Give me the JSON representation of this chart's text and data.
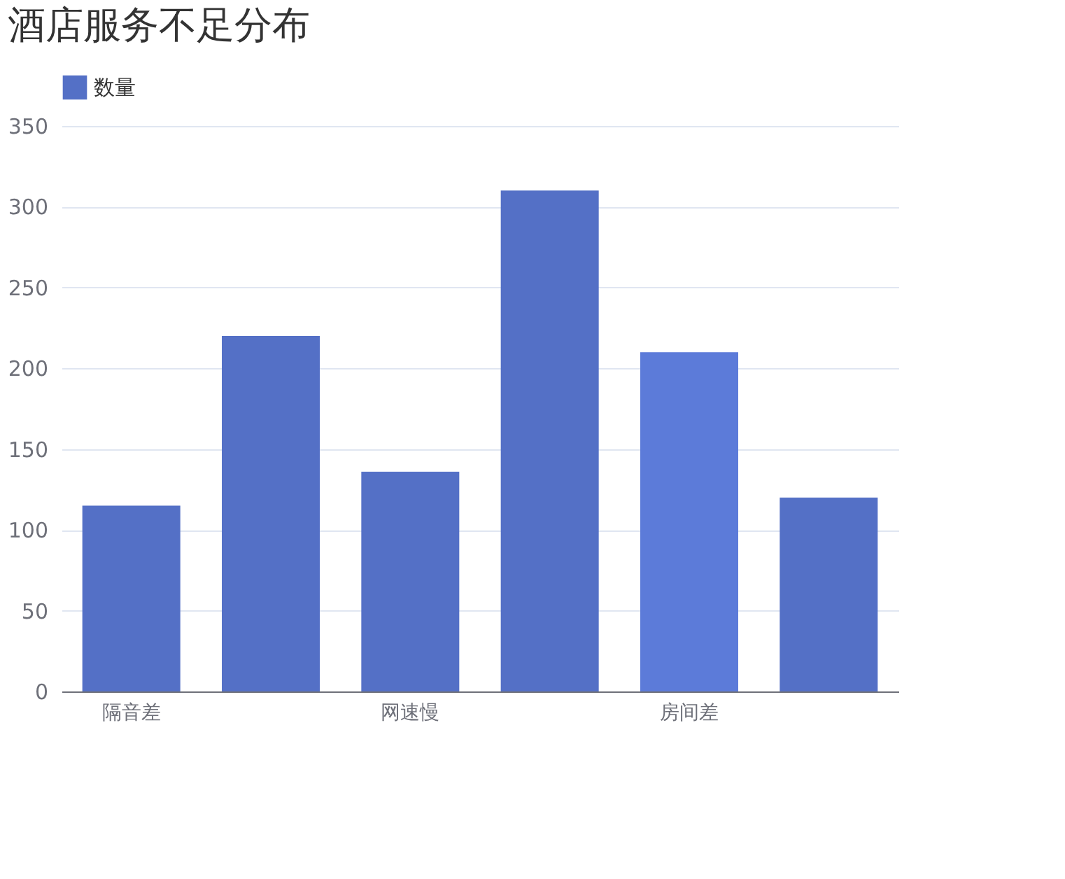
{
  "chart_data": {
    "type": "bar",
    "title": "酒店服务不足分布",
    "categories": [
      "隔音差",
      null,
      "网速慢",
      null,
      "房间差",
      null
    ],
    "series": [
      {
        "name": "数量",
        "color": "#5470c6",
        "colors": [
          "#5470c6",
          "#5470c6",
          "#5470c6",
          "#5470c6",
          "#5c7bd9",
          "#5470c6"
        ],
        "values": [
          115,
          220,
          136,
          310,
          210,
          120
        ]
      }
    ],
    "ylim": [
      0,
      350
    ],
    "yticks": [
      0,
      50,
      100,
      150,
      200,
      250,
      300,
      350
    ],
    "grid": "y",
    "legend": "top"
  }
}
